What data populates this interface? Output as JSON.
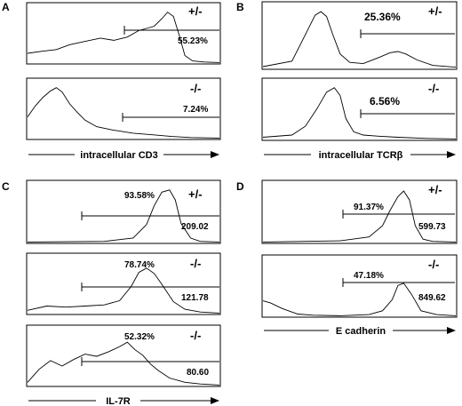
{
  "panels": [
    {
      "label": "A",
      "axis_label": "intracellular CD3",
      "histograms": [
        {
          "genotype": "+/-",
          "gate_percent": "55.23%"
        },
        {
          "genotype": "-/-",
          "gate_percent": "7.24%"
        }
      ]
    },
    {
      "label": "B",
      "axis_label": "intracellular TCRβ",
      "histograms": [
        {
          "genotype": "+/-",
          "gate_percent": "25.36%"
        },
        {
          "genotype": "-/-",
          "gate_percent": "6.56%"
        }
      ]
    },
    {
      "label": "C",
      "axis_label": "IL-7R",
      "histograms": [
        {
          "genotype": "+/-",
          "gate_percent": "93.58%",
          "mfi": "209.02"
        },
        {
          "genotype": "-/-",
          "gate_percent": "78.74%",
          "mfi": "121.78"
        },
        {
          "genotype": "-/-",
          "gate_percent": "52.32%",
          "mfi": "80.60"
        }
      ]
    },
    {
      "label": "D",
      "axis_label": "E cadherin",
      "histograms": [
        {
          "genotype": "+/-",
          "gate_percent": "91.37%",
          "mfi": "599.73"
        },
        {
          "genotype": "-/-",
          "gate_percent": "47.18%",
          "mfi": "849.62"
        }
      ]
    }
  ],
  "chart_data": {
    "type": "line",
    "note_series": "flow cytometry histograms, x = relative fluorescence position (0-100), y = relative cell count (0-100)",
    "series": [
      {
        "panel": "A",
        "genotype": "+/-",
        "x": [
          0,
          8,
          15,
          22,
          30,
          38,
          45,
          52,
          58,
          62,
          66,
          70,
          73,
          76,
          79,
          82,
          86,
          92,
          100
        ],
        "y": [
          18,
          22,
          25,
          34,
          40,
          46,
          42,
          48,
          60,
          64,
          68,
          82,
          94,
          86,
          52,
          14,
          4,
          2,
          1
        ]
      },
      {
        "panel": "A",
        "genotype": "-/-",
        "x": [
          0,
          4,
          8,
          12,
          15,
          18,
          22,
          26,
          30,
          36,
          44,
          55,
          65,
          75,
          85,
          100
        ],
        "y": [
          40,
          60,
          76,
          88,
          94,
          86,
          64,
          48,
          34,
          22,
          16,
          10,
          7,
          4,
          2,
          1
        ]
      },
      {
        "panel": "B",
        "genotype": "+/-",
        "x": [
          0,
          15,
          22,
          27,
          30,
          33,
          36,
          40,
          45,
          52,
          60,
          66,
          70,
          74,
          80,
          88,
          100
        ],
        "y": [
          3,
          12,
          56,
          88,
          94,
          86,
          58,
          24,
          10,
          8,
          18,
          26,
          28,
          24,
          14,
          5,
          2
        ]
      },
      {
        "panel": "B",
        "genotype": "-/-",
        "x": [
          0,
          15,
          22,
          28,
          33,
          37,
          40,
          43,
          47,
          52,
          60,
          70,
          85,
          100
        ],
        "y": [
          4,
          8,
          24,
          56,
          86,
          94,
          80,
          38,
          14,
          8,
          6,
          4,
          2,
          1
        ]
      },
      {
        "panel": "C",
        "genotype": "+/-",
        "x": [
          0,
          40,
          55,
          62,
          66,
          70,
          74,
          77,
          80,
          85,
          90,
          100
        ],
        "y": [
          1,
          2,
          8,
          32,
          66,
          90,
          94,
          76,
          34,
          8,
          2,
          1
        ]
      },
      {
        "panel": "C",
        "genotype": "-/-",
        "x": [
          0,
          10,
          20,
          30,
          40,
          48,
          54,
          58,
          62,
          66,
          70,
          76,
          82,
          90,
          100
        ],
        "y": [
          6,
          14,
          12,
          14,
          16,
          24,
          50,
          76,
          84,
          74,
          54,
          22,
          8,
          3,
          1
        ]
      },
      {
        "panel": "C",
        "genotype": "-/-",
        "x": [
          0,
          6,
          12,
          18,
          24,
          30,
          36,
          42,
          48,
          52,
          56,
          60,
          64,
          68,
          74,
          82,
          90,
          100
        ],
        "y": [
          6,
          30,
          46,
          36,
          48,
          58,
          54,
          62,
          72,
          80,
          66,
          56,
          40,
          28,
          14,
          6,
          3,
          1
        ]
      },
      {
        "panel": "D",
        "genotype": "+/-",
        "x": [
          0,
          40,
          55,
          62,
          66,
          70,
          73,
          76,
          79,
          83,
          88,
          100
        ],
        "y": [
          1,
          3,
          10,
          30,
          58,
          82,
          92,
          76,
          30,
          6,
          2,
          1
        ]
      },
      {
        "panel": "D",
        "genotype": "-/-",
        "x": [
          0,
          4,
          10,
          18,
          26,
          40,
          55,
          62,
          67,
          70,
          73,
          77,
          82,
          90,
          100
        ],
        "y": [
          28,
          24,
          14,
          4,
          2,
          1,
          3,
          10,
          30,
          56,
          60,
          40,
          10,
          3,
          1
        ]
      }
    ]
  }
}
